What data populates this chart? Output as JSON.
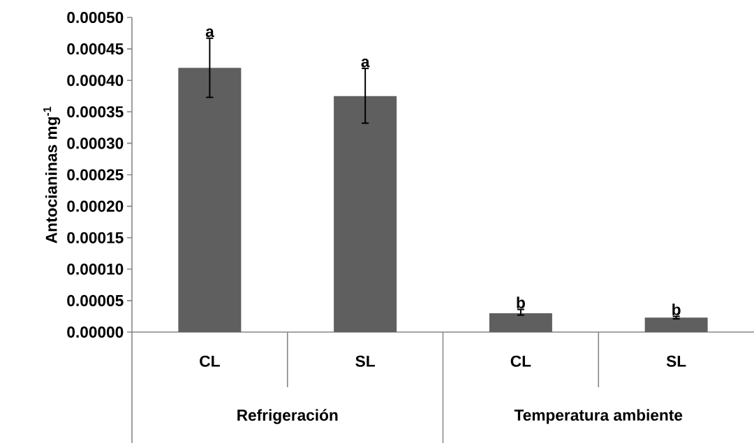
{
  "chart_data": {
    "type": "bar",
    "ylabel": "Antocianinas mg$^{-1}$",
    "categories": [
      "CL",
      "SL",
      "CL",
      "SL"
    ],
    "values": [
      0.00042,
      0.000375,
      3e-05,
      2.3e-05
    ],
    "color": "#5f5f5f",
    "errors": [
      [
        0.000373,
        0.000467
      ],
      [
        0.000332,
        0.000419
      ],
      [
        2.7e-05,
        3.6e-05
      ],
      [
        2.1e-05,
        2.5e-05
      ]
    ],
    "value_labels": [
      "a",
      "a",
      "b",
      "b"
    ],
    "annotations": [
      "Refrigeración",
      "Temperatura ambiente"
    ],
    "ylim": [
      0,
      0.0005
    ],
    "yticks": [
      {
        "value": 0,
        "label": "0.00000"
      },
      {
        "value": 5e-05,
        "label": "0.00005"
      },
      {
        "value": 0.0001,
        "label": "0.00010"
      },
      {
        "value": 0.00015,
        "label": "0.00015"
      },
      {
        "value": 0.0002,
        "label": "0.00020"
      },
      {
        "value": 0.00025,
        "label": "0.00025"
      },
      {
        "value": 0.0003,
        "label": "0.00030"
      },
      {
        "value": 0.00035,
        "label": "0.00035"
      },
      {
        "value": 0.0004,
        "label": "0.00040"
      },
      {
        "value": 0.00045,
        "label": "0.00045"
      },
      {
        "value": 0.0005,
        "label": "0.00050"
      }
    ]
  }
}
